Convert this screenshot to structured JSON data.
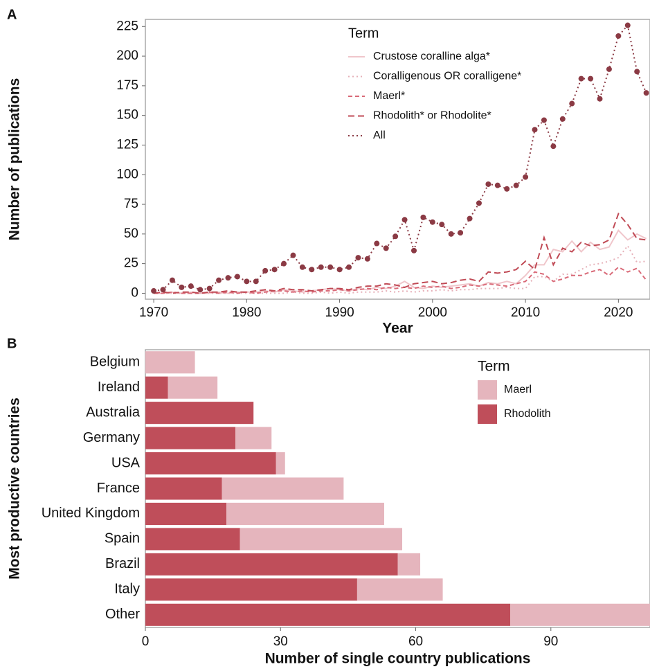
{
  "chart_data": [
    {
      "type": "line",
      "panel_label": "A",
      "x_label": "Year",
      "y_label": "Number of publications",
      "legend_title": "Term",
      "x": [
        1970,
        1971,
        1972,
        1973,
        1974,
        1975,
        1976,
        1977,
        1978,
        1979,
        1980,
        1981,
        1982,
        1983,
        1984,
        1985,
        1986,
        1987,
        1988,
        1989,
        1990,
        1991,
        1992,
        1993,
        1994,
        1995,
        1996,
        1997,
        1998,
        1999,
        2000,
        2001,
        2002,
        2003,
        2004,
        2005,
        2006,
        2007,
        2008,
        2009,
        2010,
        2011,
        2012,
        2013,
        2014,
        2015,
        2016,
        2017,
        2018,
        2019,
        2020,
        2021,
        2022,
        2023
      ],
      "series": [
        {
          "name": "Crustose coralline alga*",
          "color": "#f0c6cb",
          "linestyle": "solid",
          "markers": false,
          "values": [
            0,
            0,
            1,
            0,
            1,
            0,
            0,
            1,
            0,
            1,
            1,
            1,
            2,
            1,
            3,
            2,
            1,
            2,
            3,
            4,
            3,
            2,
            4,
            3,
            5,
            4,
            6,
            10,
            5,
            4,
            6,
            5,
            6,
            7,
            8,
            6,
            9,
            8,
            10,
            8,
            15,
            24,
            24,
            37,
            35,
            44,
            35,
            43,
            37,
            39,
            53,
            45,
            50,
            46
          ]
        },
        {
          "name": "Coralligenous OR coralligene*",
          "color": "#e6b0b8",
          "linestyle": "dotted",
          "markers": false,
          "values": [
            0,
            0,
            0,
            0,
            0,
            0,
            0,
            0,
            0,
            0,
            0,
            0,
            0,
            0,
            0,
            1,
            0,
            0,
            1,
            0,
            1,
            0,
            1,
            1,
            1,
            2,
            1,
            2,
            1,
            2,
            2,
            3,
            2,
            3,
            3,
            4,
            4,
            4,
            5,
            4,
            4,
            14,
            14,
            10,
            16,
            16,
            20,
            24,
            25,
            27,
            30,
            40,
            26,
            27
          ]
        },
        {
          "name": "Maerl*",
          "color": "#d96a78",
          "linestyle": "dashed",
          "markers": false,
          "values": [
            0,
            0,
            1,
            0,
            0,
            0,
            1,
            0,
            1,
            0,
            1,
            0,
            1,
            2,
            2,
            1,
            2,
            1,
            2,
            2,
            3,
            2,
            3,
            4,
            3,
            5,
            4,
            5,
            4,
            6,
            5,
            6,
            4,
            5,
            7,
            6,
            8,
            7,
            6,
            8,
            10,
            18,
            16,
            10,
            12,
            15,
            15,
            18,
            20,
            15,
            22,
            18,
            21,
            11
          ]
        },
        {
          "name": "Rhodolith* or Rhodolite*",
          "color": "#c04a55",
          "linestyle": "longdash",
          "markers": false,
          "values": [
            0,
            1,
            0,
            1,
            1,
            0,
            1,
            1,
            2,
            1,
            1,
            2,
            3,
            2,
            4,
            3,
            3,
            2,
            3,
            4,
            4,
            3,
            5,
            6,
            6,
            8,
            7,
            5,
            8,
            9,
            10,
            8,
            9,
            11,
            12,
            10,
            18,
            17,
            18,
            20,
            27,
            20,
            47,
            24,
            38,
            35,
            43,
            40,
            41,
            45,
            67,
            58,
            46,
            45
          ]
        },
        {
          "name": "All",
          "color": "#8b3a44",
          "linestyle": "dotted",
          "markers": true,
          "values": [
            2,
            3,
            11,
            5,
            6,
            3,
            4,
            11,
            13,
            14,
            10,
            10,
            19,
            20,
            25,
            32,
            22,
            20,
            22,
            22,
            20,
            22,
            30,
            29,
            42,
            38,
            48,
            62,
            36,
            64,
            60,
            58,
            50,
            51,
            63,
            76,
            92,
            91,
            88,
            91,
            98,
            138,
            146,
            124,
            147,
            160,
            181,
            181,
            164,
            189,
            217,
            226,
            187,
            169
          ]
        }
      ],
      "xlim": [
        1969.1,
        2023.4
      ],
      "xticks": [
        1970,
        1980,
        1990,
        2000,
        2010,
        2020
      ],
      "ylim": [
        -5,
        231
      ],
      "yticks": [
        0,
        25,
        50,
        75,
        100,
        125,
        150,
        175,
        200,
        225
      ],
      "grid": false
    },
    {
      "type": "stacked_barh",
      "panel_label": "B",
      "x_label": "Number of single country publications",
      "y_label": "Most productive countries",
      "legend_title": "Term",
      "categories": [
        "Belgium",
        "Ireland",
        "Australia",
        "Germany",
        "USA",
        "France",
        "United Kingdom",
        "Spain",
        "Brazil",
        "Italy",
        "Other"
      ],
      "series": [
        {
          "name": "Rhodolith",
          "color": "#bf4e5a",
          "values": [
            0,
            5,
            24,
            20,
            29,
            17,
            18,
            21,
            56,
            47,
            81
          ]
        },
        {
          "name": "Maerl",
          "color": "#e5b5bd",
          "values": [
            11,
            11,
            0,
            8,
            2,
            27,
            35,
            36,
            5,
            19,
            31
          ]
        }
      ],
      "xlim": [
        0,
        112
      ],
      "xticks": [
        0,
        30,
        60,
        90
      ],
      "grid": false
    }
  ]
}
